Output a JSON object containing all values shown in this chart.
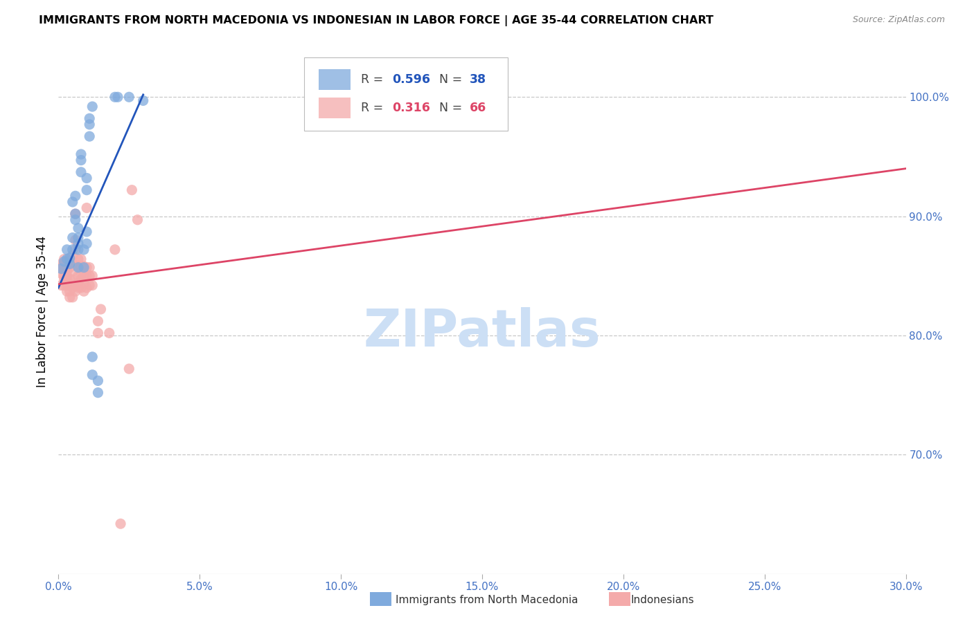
{
  "title": "IMMIGRANTS FROM NORTH MACEDONIA VS INDONESIAN IN LABOR FORCE | AGE 35-44 CORRELATION CHART",
  "source": "Source: ZipAtlas.com",
  "ylabel": "In Labor Force | Age 35-44",
  "xlim": [
    0.0,
    0.3
  ],
  "ylim": [
    0.6,
    1.04
  ],
  "xticks": [
    0.0,
    0.05,
    0.1,
    0.15,
    0.2,
    0.25,
    0.3
  ],
  "xticklabels": [
    "0.0%",
    "5.0%",
    "10.0%",
    "15.0%",
    "20.0%",
    "25.0%",
    "30.0%"
  ],
  "yticks": [
    0.7,
    0.8,
    0.9,
    1.0
  ],
  "yticklabels": [
    "70.0%",
    "80.0%",
    "90.0%",
    "100.0%"
  ],
  "ytick_color": "#4472c4",
  "xtick_color": "#4472c4",
  "grid_color": "#c8c8c8",
  "background_color": "#ffffff",
  "watermark_text": "ZIPatlas",
  "watermark_color": "#ccdff5",
  "blue_color": "#7faadd",
  "blue_line_color": "#2255bb",
  "pink_color": "#f4aaaa",
  "pink_line_color": "#dd4466",
  "blue_scatter": [
    [
      0.001,
      0.856
    ],
    [
      0.002,
      0.862
    ],
    [
      0.003,
      0.864
    ],
    [
      0.003,
      0.872
    ],
    [
      0.004,
      0.86
    ],
    [
      0.004,
      0.865
    ],
    [
      0.005,
      0.882
    ],
    [
      0.005,
      0.912
    ],
    [
      0.005,
      0.872
    ],
    [
      0.006,
      0.902
    ],
    [
      0.006,
      0.897
    ],
    [
      0.006,
      0.917
    ],
    [
      0.007,
      0.872
    ],
    [
      0.007,
      0.877
    ],
    [
      0.007,
      0.882
    ],
    [
      0.007,
      0.89
    ],
    [
      0.007,
      0.857
    ],
    [
      0.008,
      0.952
    ],
    [
      0.008,
      0.947
    ],
    [
      0.008,
      0.937
    ],
    [
      0.009,
      0.872
    ],
    [
      0.009,
      0.857
    ],
    [
      0.01,
      0.922
    ],
    [
      0.01,
      0.932
    ],
    [
      0.01,
      0.887
    ],
    [
      0.01,
      0.877
    ],
    [
      0.011,
      0.967
    ],
    [
      0.011,
      0.977
    ],
    [
      0.011,
      0.982
    ],
    [
      0.012,
      0.992
    ],
    [
      0.012,
      0.767
    ],
    [
      0.012,
      0.782
    ],
    [
      0.014,
      0.752
    ],
    [
      0.014,
      0.762
    ],
    [
      0.02,
      1.0
    ],
    [
      0.021,
      1.0
    ],
    [
      0.025,
      1.0
    ],
    [
      0.03,
      0.997
    ]
  ],
  "pink_scatter": [
    [
      0.001,
      0.842
    ],
    [
      0.001,
      0.852
    ],
    [
      0.001,
      0.857
    ],
    [
      0.001,
      0.86
    ],
    [
      0.002,
      0.842
    ],
    [
      0.002,
      0.847
    ],
    [
      0.002,
      0.85
    ],
    [
      0.002,
      0.854
    ],
    [
      0.002,
      0.86
    ],
    [
      0.002,
      0.864
    ],
    [
      0.003,
      0.837
    ],
    [
      0.003,
      0.842
    ],
    [
      0.003,
      0.847
    ],
    [
      0.003,
      0.85
    ],
    [
      0.003,
      0.854
    ],
    [
      0.003,
      0.858
    ],
    [
      0.003,
      0.862
    ],
    [
      0.004,
      0.832
    ],
    [
      0.004,
      0.837
    ],
    [
      0.004,
      0.842
    ],
    [
      0.004,
      0.847
    ],
    [
      0.004,
      0.857
    ],
    [
      0.004,
      0.862
    ],
    [
      0.005,
      0.832
    ],
    [
      0.005,
      0.84
    ],
    [
      0.005,
      0.847
    ],
    [
      0.005,
      0.854
    ],
    [
      0.005,
      0.86
    ],
    [
      0.005,
      0.867
    ],
    [
      0.006,
      0.837
    ],
    [
      0.006,
      0.842
    ],
    [
      0.006,
      0.872
    ],
    [
      0.006,
      0.88
    ],
    [
      0.006,
      0.902
    ],
    [
      0.007,
      0.84
    ],
    [
      0.007,
      0.844
    ],
    [
      0.007,
      0.85
    ],
    [
      0.007,
      0.858
    ],
    [
      0.007,
      0.864
    ],
    [
      0.008,
      0.84
    ],
    [
      0.008,
      0.847
    ],
    [
      0.008,
      0.852
    ],
    [
      0.008,
      0.857
    ],
    [
      0.008,
      0.864
    ],
    [
      0.009,
      0.837
    ],
    [
      0.009,
      0.844
    ],
    [
      0.009,
      0.85
    ],
    [
      0.009,
      0.858
    ],
    [
      0.01,
      0.84
    ],
    [
      0.01,
      0.85
    ],
    [
      0.01,
      0.857
    ],
    [
      0.01,
      0.907
    ],
    [
      0.011,
      0.842
    ],
    [
      0.011,
      0.85
    ],
    [
      0.011,
      0.857
    ],
    [
      0.012,
      0.842
    ],
    [
      0.012,
      0.85
    ],
    [
      0.014,
      0.802
    ],
    [
      0.014,
      0.812
    ],
    [
      0.015,
      0.822
    ],
    [
      0.018,
      0.802
    ],
    [
      0.02,
      0.872
    ],
    [
      0.022,
      0.642
    ],
    [
      0.025,
      0.772
    ],
    [
      0.026,
      0.922
    ],
    [
      0.028,
      0.897
    ]
  ],
  "blue_trend_x": [
    0.0,
    0.03
  ],
  "blue_trend_y": [
    0.84,
    1.002
  ],
  "pink_trend_x": [
    0.0,
    0.3
  ],
  "pink_trend_y": [
    0.843,
    0.94
  ]
}
